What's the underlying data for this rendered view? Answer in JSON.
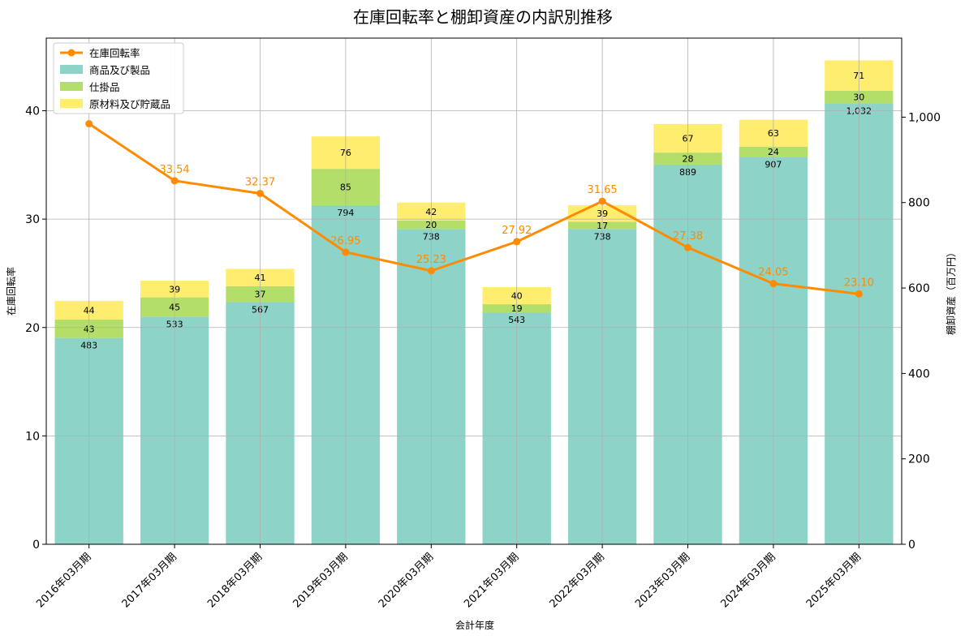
{
  "chart_data": {
    "type": "bar",
    "title": "在庫回転率と棚卸資産の内訳別推移",
    "xlabel": "会計年度",
    "ylabel_left": "在庫回転率",
    "ylabel_right": "棚卸資産（百万円）",
    "ylim_left": [
      0,
      46.7
    ],
    "ylim_right": [
      0,
      1185
    ],
    "yticks_left": [
      0,
      10,
      20,
      30,
      40
    ],
    "yticks_right": [
      0,
      200,
      400,
      600,
      800,
      1000
    ],
    "yticks_right_labels": [
      "0",
      "200",
      "400",
      "600",
      "800",
      "1,000"
    ],
    "grid": true,
    "legend_position": "top-left",
    "categories": [
      "2016年03月期",
      "2017年03月期",
      "2018年03月期",
      "2019年03月期",
      "2020年03月期",
      "2021年03月期",
      "2022年03月期",
      "2023年03月期",
      "2024年03月期",
      "2025年03月期"
    ],
    "series": [
      {
        "name": "商品及び製品",
        "kind": "bar",
        "axis": "right",
        "color": "#8dd3c7",
        "values": [
          483,
          533,
          567,
          794,
          738,
          543,
          738,
          889,
          907,
          1032
        ],
        "labels": [
          "483",
          "533",
          "567",
          "794",
          "738",
          "543",
          "738",
          "889",
          "907",
          "1,032"
        ]
      },
      {
        "name": "仕掛品",
        "kind": "bar",
        "axis": "right",
        "color": "#b3de69",
        "values": [
          43,
          45,
          37,
          85,
          20,
          19,
          17,
          28,
          24,
          30
        ],
        "labels": [
          "43",
          "45",
          "37",
          "85",
          "20",
          "19",
          "17",
          "28",
          "24",
          "30"
        ]
      },
      {
        "name": "原材料及び貯蔵品",
        "kind": "bar",
        "axis": "right",
        "color": "#ffed6f",
        "values": [
          44,
          39,
          41,
          76,
          42,
          40,
          39,
          67,
          63,
          71
        ],
        "labels": [
          "44",
          "39",
          "41",
          "76",
          "42",
          "40",
          "39",
          "67",
          "63",
          "71"
        ]
      },
      {
        "name": "在庫回転率",
        "kind": "line",
        "axis": "left",
        "color": "#ff8c00",
        "values": [
          38.8,
          33.54,
          32.37,
          26.95,
          25.23,
          27.92,
          31.65,
          27.38,
          24.05,
          23.1
        ],
        "labels": [
          "",
          "33.54",
          "32.37",
          "26.95",
          "25.23",
          "27.92",
          "31.65",
          "27.38",
          "24.05",
          "23.10"
        ]
      }
    ],
    "legend": [
      "在庫回転率",
      "商品及び製品",
      "仕掛品",
      "原材料及び貯蔵品"
    ]
  }
}
